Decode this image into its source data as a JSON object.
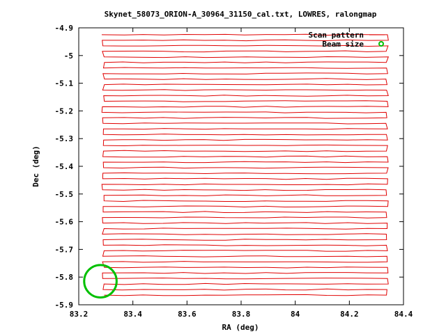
{
  "chart_data": {
    "type": "line",
    "title": "Skynet_58073_ORION-A_30964_31150_cal.txt, LOWRES, ralongmap",
    "xlabel": "RA (deg)",
    "ylabel": "Dec (deg)",
    "xlim": [
      83.2,
      84.4
    ],
    "ylim": [
      -5.9,
      -4.9
    ],
    "x_ticks": [
      "83.2",
      "83.4",
      "83.6",
      "83.8",
      "84",
      "84.2",
      "84.4"
    ],
    "y_ticks": [
      "-4.9",
      "-5",
      "-5.1",
      "-5.2",
      "-5.3",
      "-5.4",
      "-5.5",
      "-5.6",
      "-5.7",
      "-5.8",
      "-5.9"
    ],
    "grid": false,
    "legend_position": "top-right",
    "series": [
      {
        "name": "Scan pattern",
        "color": "#e00000",
        "scan": {
          "ra_start": 83.29,
          "ra_end": 84.34,
          "dec_start": -4.925,
          "dec_end": -5.865,
          "row_spacing": 0.02
        }
      },
      {
        "name": "Beam size",
        "color": "#00c000",
        "circle": {
          "center_ra": 83.28,
          "center_dec": -5.815,
          "radius_ra": 0.06
        }
      }
    ]
  }
}
